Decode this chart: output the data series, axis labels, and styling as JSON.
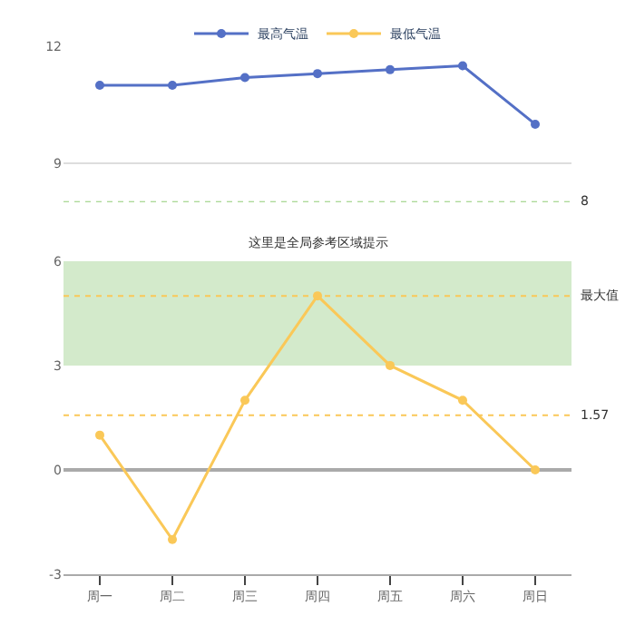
{
  "chart_data": [
    {
      "type": "line",
      "categories": [
        null,
        null,
        null,
        null,
        null,
        null,
        null
      ],
      "series": [
        {
          "name": "最高气温",
          "color": "#5470c6",
          "values": [
            11,
            11,
            11.2,
            11.3,
            11.4,
            11.5,
            10
          ]
        }
      ],
      "ylim": [
        8,
        12
      ],
      "yticks": [
        9,
        12
      ],
      "grid": "y",
      "legend": "top",
      "marker": "circle",
      "line_style": "solid",
      "tick_labels": "y",
      "ref_lines": [
        {
          "axis": "y",
          "value": 8,
          "label": "8",
          "color": "#91cc75",
          "line_style": "dotted"
        }
      ]
    },
    {
      "type": "line",
      "title": "这里是全局参考区域提示",
      "categories": [
        "周一",
        "周二",
        "周三",
        "周四",
        "周五",
        "周六",
        "周日"
      ],
      "series": [
        {
          "name": "最低气温",
          "color": "#fac858",
          "values": [
            1,
            -2,
            2,
            5,
            3,
            2,
            0
          ]
        }
      ],
      "ylim": [
        -3,
        6
      ],
      "yticks": [
        -3,
        0,
        3,
        6
      ],
      "legend": "top",
      "marker": "circle",
      "line_style": "solid",
      "ref_lines": [
        {
          "axis": "y",
          "value": 5,
          "label": "最大值",
          "color": "#fac858",
          "line_style": "dotted"
        },
        {
          "axis": "y",
          "value": 1.57,
          "label": "1.57",
          "color": "#fac858",
          "line_style": "dotted"
        }
      ],
      "bands": [
        {
          "axis": "y",
          "from": 3,
          "to": 6,
          "color": "#d3eacb"
        }
      ]
    }
  ]
}
